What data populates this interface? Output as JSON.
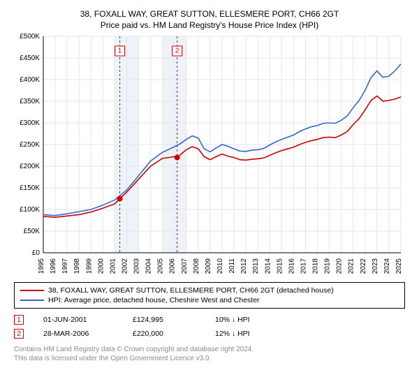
{
  "title_line1": "38, FOXALL WAY, GREAT SUTTON, ELLESMERE PORT, CH66 2GT",
  "title_line2": "Price paid vs. HM Land Registry's House Price Index (HPI)",
  "chart": {
    "type": "line",
    "x_min": 1995,
    "x_max": 2025,
    "y_min": 0,
    "y_max": 500000,
    "y_ticks": [
      0,
      50000,
      100000,
      150000,
      200000,
      250000,
      300000,
      350000,
      400000,
      450000,
      500000
    ],
    "y_tick_labels": [
      "£0",
      "£50K",
      "£100K",
      "£150K",
      "£200K",
      "£250K",
      "£300K",
      "£350K",
      "£400K",
      "£450K",
      "£500K"
    ],
    "x_ticks": [
      1995,
      1996,
      1997,
      1998,
      1999,
      2000,
      2001,
      2002,
      2003,
      2004,
      2005,
      2006,
      2007,
      2008,
      2009,
      2010,
      2011,
      2012,
      2013,
      2014,
      2015,
      2016,
      2017,
      2018,
      2019,
      2020,
      2021,
      2022,
      2023,
      2024,
      2025
    ],
    "background_color": "#ffffff",
    "grid_color": "#e6e6e6",
    "band_color": "#eef2f9",
    "bands": [
      [
        2001,
        2003
      ],
      [
        2005,
        2007
      ]
    ],
    "series": [
      {
        "name": "property",
        "color": "#cc0000",
        "values": [
          [
            1995,
            84000
          ],
          [
            1996,
            82000
          ],
          [
            1997,
            85000
          ],
          [
            1998,
            88000
          ],
          [
            1999,
            94000
          ],
          [
            2000,
            103000
          ],
          [
            2001,
            113000
          ],
          [
            2001.42,
            124995
          ],
          [
            2002,
            140000
          ],
          [
            2003,
            170000
          ],
          [
            2004,
            200000
          ],
          [
            2005,
            218000
          ],
          [
            2006,
            222000
          ],
          [
            2006.23,
            220000
          ],
          [
            2007,
            238000
          ],
          [
            2007.5,
            245000
          ],
          [
            2008,
            240000
          ],
          [
            2008.5,
            222000
          ],
          [
            2009,
            215000
          ],
          [
            2009.5,
            222000
          ],
          [
            2010,
            228000
          ],
          [
            2010.5,
            223000
          ],
          [
            2011,
            220000
          ],
          [
            2011.5,
            215000
          ],
          [
            2012,
            214000
          ],
          [
            2012.5,
            216000
          ],
          [
            2013,
            217000
          ],
          [
            2013.5,
            219000
          ],
          [
            2014,
            225000
          ],
          [
            2014.5,
            231000
          ],
          [
            2015,
            236000
          ],
          [
            2015.5,
            240000
          ],
          [
            2016,
            244000
          ],
          [
            2016.5,
            250000
          ],
          [
            2017,
            255000
          ],
          [
            2017.5,
            259000
          ],
          [
            2018,
            262000
          ],
          [
            2018.5,
            266000
          ],
          [
            2019,
            267000
          ],
          [
            2019.5,
            266000
          ],
          [
            2020,
            272000
          ],
          [
            2020.5,
            280000
          ],
          [
            2021,
            296000
          ],
          [
            2021.5,
            310000
          ],
          [
            2022,
            330000
          ],
          [
            2022.5,
            352000
          ],
          [
            2023,
            362000
          ],
          [
            2023.5,
            350000
          ],
          [
            2024,
            352000
          ],
          [
            2024.5,
            355000
          ],
          [
            2025,
            360000
          ]
        ]
      },
      {
        "name": "hpi",
        "color": "#3366cc",
        "values": [
          [
            1995,
            88000
          ],
          [
            1996,
            86000
          ],
          [
            1997,
            90000
          ],
          [
            1998,
            95000
          ],
          [
            1999,
            100000
          ],
          [
            2000,
            110000
          ],
          [
            2001,
            122000
          ],
          [
            2002,
            145000
          ],
          [
            2003,
            178000
          ],
          [
            2004,
            212000
          ],
          [
            2005,
            232000
          ],
          [
            2006,
            245000
          ],
          [
            2006.5,
            252000
          ],
          [
            2007,
            262000
          ],
          [
            2007.5,
            270000
          ],
          [
            2008,
            265000
          ],
          [
            2008.5,
            240000
          ],
          [
            2009,
            233000
          ],
          [
            2009.5,
            242000
          ],
          [
            2010,
            250000
          ],
          [
            2010.5,
            246000
          ],
          [
            2011,
            240000
          ],
          [
            2011.5,
            235000
          ],
          [
            2012,
            234000
          ],
          [
            2012.5,
            237000
          ],
          [
            2013,
            238000
          ],
          [
            2013.5,
            241000
          ],
          [
            2014,
            249000
          ],
          [
            2014.5,
            256000
          ],
          [
            2015,
            262000
          ],
          [
            2015.5,
            267000
          ],
          [
            2016,
            272000
          ],
          [
            2016.5,
            280000
          ],
          [
            2017,
            286000
          ],
          [
            2017.5,
            291000
          ],
          [
            2018,
            294000
          ],
          [
            2018.5,
            299000
          ],
          [
            2019,
            300000
          ],
          [
            2019.5,
            299000
          ],
          [
            2020,
            306000
          ],
          [
            2020.5,
            316000
          ],
          [
            2021,
            335000
          ],
          [
            2021.5,
            352000
          ],
          [
            2022,
            375000
          ],
          [
            2022.5,
            405000
          ],
          [
            2023,
            420000
          ],
          [
            2023.5,
            405000
          ],
          [
            2024,
            408000
          ],
          [
            2024.5,
            420000
          ],
          [
            2025,
            436000
          ]
        ]
      }
    ],
    "sale_markers": [
      {
        "n": "1",
        "x": 2001.42,
        "y": 124995,
        "color": "#cc0000"
      },
      {
        "n": "2",
        "x": 2006.23,
        "y": 220000,
        "color": "#cc0000"
      }
    ],
    "sale_dashes": [
      {
        "x": 2001.42,
        "color": "#cc0000"
      },
      {
        "x": 2006.23,
        "color": "#cc0000"
      }
    ]
  },
  "legend": {
    "property_color": "#cc0000",
    "property_label": "38, FOXALL WAY, GREAT SUTTON, ELLESMERE PORT, CH66 2GT (detached house)",
    "hpi_color": "#3366cc",
    "hpi_label": "HPI: Average price, detached house, Cheshire West and Chester"
  },
  "sales": [
    {
      "n": "1",
      "color": "#cc0000",
      "date": "01-JUN-2001",
      "price": "£124,995",
      "compare": "10% ↓ HPI"
    },
    {
      "n": "2",
      "color": "#cc0000",
      "date": "28-MAR-2006",
      "price": "£220,000",
      "compare": "12% ↓ HPI"
    }
  ],
  "footer_line1": "Contains HM Land Registry data © Crown copyright and database right 2024.",
  "footer_line2": "This data is licensed under the Open Government Licence v3.0."
}
